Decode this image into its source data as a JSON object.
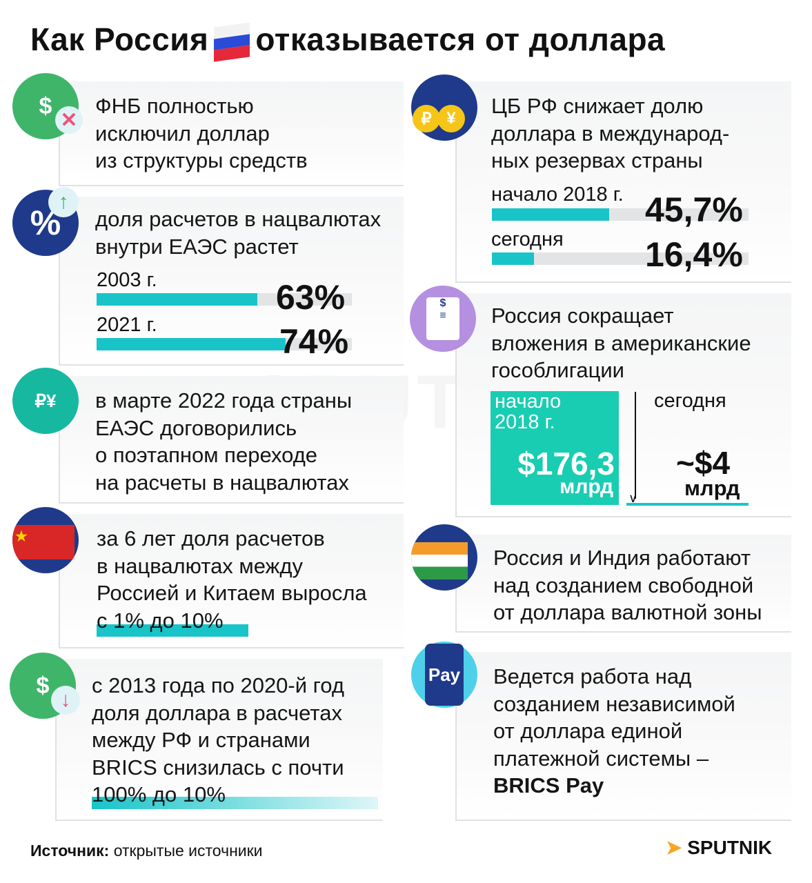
{
  "title": {
    "part1": "Как Россия",
    "part2": "отказывается от доллара"
  },
  "watermark": "SPUTNIK",
  "left": [
    {
      "lines": [
        "ФНБ полностью",
        "исключил доллар",
        "из структуры средств"
      ]
    },
    {
      "lines": [
        "доля расчетов в нацвалютах",
        "внутри ЕАЭС растет"
      ],
      "bars": [
        {
          "label": "2003 г.",
          "value": "63%",
          "fill": 63
        },
        {
          "label": "2021 г.",
          "value": "74%",
          "fill": 74
        }
      ]
    },
    {
      "lines": [
        "в марте 2022 года страны",
        "ЕАЭС договорились",
        "о поэтапном переходе",
        "на расчеты в нацвалютах"
      ]
    },
    {
      "lines": [
        "за 6 лет доля расчетов",
        "в нацвалютах между",
        "Россией и Китаем выросла",
        "с 1% до 10%"
      ]
    },
    {
      "lines": [
        "с 2013 года по 2020-й год",
        "доля доллара в расчетах",
        "между РФ и странами",
        "BRICS снизилась с почти",
        "100% до 10%"
      ]
    }
  ],
  "right": [
    {
      "lines": [
        "ЦБ РФ снижает долю",
        "доллара в международ-",
        "ных резервах страны"
      ],
      "bars": [
        {
          "label": "начало 2018 г.",
          "value": "45,7%",
          "fill": 45.7
        },
        {
          "label": "сегодня",
          "value": "16,4%",
          "fill": 16.4
        }
      ]
    },
    {
      "lines": [
        "Россия сокращает",
        "вложения в американские",
        "гособлигации"
      ],
      "before": {
        "label1": "начало",
        "label2": "2018 г.",
        "value": "$176,3",
        "unit": "млрд"
      },
      "after": {
        "label": "сегодня",
        "value": "~$4",
        "unit": "млрд"
      }
    },
    {
      "lines": [
        "Россия и Индия работают",
        "над созданием свободной",
        "от доллара валютной зоны"
      ]
    },
    {
      "lines": [
        "Ведется работа над",
        "созданием независимой",
        "от доллара единой",
        "платежной системы –",
        "BRICS Pay"
      ]
    }
  ],
  "icons": {
    "pay_label": "Pay",
    "currency1": "₽",
    "currency2": "¥"
  },
  "footer": {
    "source_label": "Источник:",
    "source_text": " открытые источники",
    "logo": "SPUTNIK"
  },
  "colors": {
    "accent": "#18c4c8",
    "teal_box": "#19cdb2",
    "bar_bg": "#e3e4e6",
    "logo": "#f5a623"
  }
}
